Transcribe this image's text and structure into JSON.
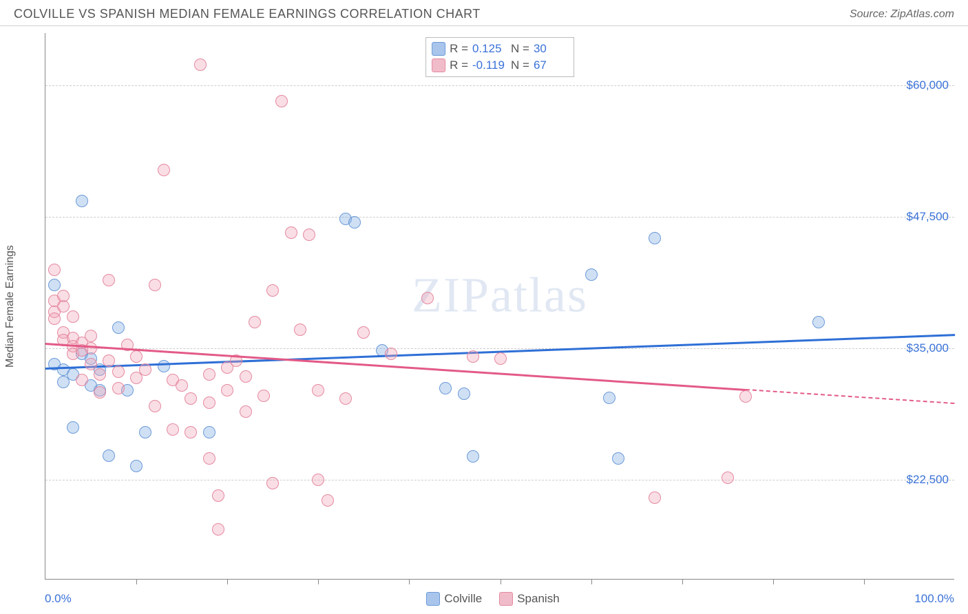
{
  "title": "COLVILLE VS SPANISH MEDIAN FEMALE EARNINGS CORRELATION CHART",
  "source": "Source: ZipAtlas.com",
  "watermark": "ZIPatlas",
  "y_axis_label": "Median Female Earnings",
  "chart": {
    "type": "scatter",
    "xlim": [
      0,
      100
    ],
    "ylim": [
      13000,
      65000
    ],
    "x_min_label": "0.0%",
    "x_max_label": "100.0%",
    "x_ticks_pct": [
      10,
      20,
      30,
      40,
      50,
      60,
      70,
      80,
      90
    ],
    "y_gridlines": [
      22500,
      35000,
      47500,
      60000
    ],
    "y_labels": [
      "$22,500",
      "$35,000",
      "$47,500",
      "$60,000"
    ],
    "grid_color": "#cccccc",
    "axis_color": "#888888",
    "background_color": "#ffffff",
    "point_radius": 9,
    "point_border_width": 1.5,
    "series": [
      {
        "name": "Colville",
        "fill": "rgba(119,165,224,0.35)",
        "stroke": "#6a9ad8",
        "swatch_fill": "#a9c5ec",
        "swatch_border": "#6a9ad8",
        "R": "0.125",
        "N": "30",
        "trend": {
          "y_at_xmin": 33200,
          "y_at_xmax": 36400,
          "color": "#2e6fd6",
          "solid_to_x": 100
        },
        "points": [
          {
            "x": 1,
            "y": 41000
          },
          {
            "x": 1,
            "y": 33500
          },
          {
            "x": 2,
            "y": 33000
          },
          {
            "x": 2,
            "y": 31800
          },
          {
            "x": 3,
            "y": 32500
          },
          {
            "x": 3,
            "y": 27500
          },
          {
            "x": 4,
            "y": 49000
          },
          {
            "x": 4,
            "y": 34500
          },
          {
            "x": 5,
            "y": 34000
          },
          {
            "x": 5,
            "y": 31500
          },
          {
            "x": 6,
            "y": 33000
          },
          {
            "x": 6,
            "y": 31000
          },
          {
            "x": 7,
            "y": 24800
          },
          {
            "x": 8,
            "y": 37000
          },
          {
            "x": 9,
            "y": 31000
          },
          {
            "x": 10,
            "y": 23800
          },
          {
            "x": 11,
            "y": 27000
          },
          {
            "x": 13,
            "y": 33300
          },
          {
            "x": 18,
            "y": 27000
          },
          {
            "x": 33,
            "y": 47300
          },
          {
            "x": 34,
            "y": 47000
          },
          {
            "x": 37,
            "y": 34800
          },
          {
            "x": 44,
            "y": 31200
          },
          {
            "x": 46,
            "y": 30700
          },
          {
            "x": 47,
            "y": 24700
          },
          {
            "x": 60,
            "y": 42000
          },
          {
            "x": 62,
            "y": 30300
          },
          {
            "x": 63,
            "y": 24500
          },
          {
            "x": 67,
            "y": 45500
          },
          {
            "x": 85,
            "y": 37500
          }
        ]
      },
      {
        "name": "Spanish",
        "fill": "rgba(240,160,180,0.35)",
        "stroke": "#e489a0",
        "swatch_fill": "#f1bcc9",
        "swatch_border": "#e489a0",
        "R": "-0.119",
        "N": "67",
        "trend": {
          "y_at_xmin": 35500,
          "y_at_xmax": 29800,
          "color": "#e35a87",
          "solid_to_x": 77
        },
        "points": [
          {
            "x": 1,
            "y": 42500
          },
          {
            "x": 1,
            "y": 39500
          },
          {
            "x": 1,
            "y": 38500
          },
          {
            "x": 1,
            "y": 37800
          },
          {
            "x": 2,
            "y": 40000
          },
          {
            "x": 2,
            "y": 39000
          },
          {
            "x": 2,
            "y": 36500
          },
          {
            "x": 2,
            "y": 35800
          },
          {
            "x": 3,
            "y": 38000
          },
          {
            "x": 3,
            "y": 36000
          },
          {
            "x": 3,
            "y": 35200
          },
          {
            "x": 3,
            "y": 34500
          },
          {
            "x": 4,
            "y": 35500
          },
          {
            "x": 4,
            "y": 34800
          },
          {
            "x": 4,
            "y": 32000
          },
          {
            "x": 5,
            "y": 36200
          },
          {
            "x": 5,
            "y": 35000
          },
          {
            "x": 5,
            "y": 33500
          },
          {
            "x": 6,
            "y": 32500
          },
          {
            "x": 6,
            "y": 30800
          },
          {
            "x": 7,
            "y": 41500
          },
          {
            "x": 7,
            "y": 33800
          },
          {
            "x": 8,
            "y": 32800
          },
          {
            "x": 8,
            "y": 31200
          },
          {
            "x": 9,
            "y": 35300
          },
          {
            "x": 10,
            "y": 34200
          },
          {
            "x": 10,
            "y": 32200
          },
          {
            "x": 11,
            "y": 33000
          },
          {
            "x": 12,
            "y": 41000
          },
          {
            "x": 12,
            "y": 29500
          },
          {
            "x": 13,
            "y": 52000
          },
          {
            "x": 14,
            "y": 32000
          },
          {
            "x": 14,
            "y": 27300
          },
          {
            "x": 15,
            "y": 31500
          },
          {
            "x": 16,
            "y": 30200
          },
          {
            "x": 16,
            "y": 27000
          },
          {
            "x": 17,
            "y": 62000
          },
          {
            "x": 18,
            "y": 32500
          },
          {
            "x": 18,
            "y": 29800
          },
          {
            "x": 18,
            "y": 24500
          },
          {
            "x": 19,
            "y": 21000
          },
          {
            "x": 19,
            "y": 17800
          },
          {
            "x": 20,
            "y": 33200
          },
          {
            "x": 20,
            "y": 31000
          },
          {
            "x": 21,
            "y": 33800
          },
          {
            "x": 22,
            "y": 32300
          },
          {
            "x": 22,
            "y": 29000
          },
          {
            "x": 23,
            "y": 37500
          },
          {
            "x": 24,
            "y": 30500
          },
          {
            "x": 25,
            "y": 40500
          },
          {
            "x": 25,
            "y": 22200
          },
          {
            "x": 26,
            "y": 58500
          },
          {
            "x": 27,
            "y": 46000
          },
          {
            "x": 28,
            "y": 36800
          },
          {
            "x": 29,
            "y": 45800
          },
          {
            "x": 30,
            "y": 31000
          },
          {
            "x": 30,
            "y": 22500
          },
          {
            "x": 31,
            "y": 20500
          },
          {
            "x": 33,
            "y": 30200
          },
          {
            "x": 35,
            "y": 36500
          },
          {
            "x": 38,
            "y": 34500
          },
          {
            "x": 42,
            "y": 39800
          },
          {
            "x": 47,
            "y": 34200
          },
          {
            "x": 50,
            "y": 34000
          },
          {
            "x": 67,
            "y": 20800
          },
          {
            "x": 75,
            "y": 22700
          },
          {
            "x": 77,
            "y": 30400
          }
        ]
      }
    ]
  },
  "stats_box": {
    "R_label": "R =",
    "N_label": "N ="
  },
  "legend_series": [
    "Colville",
    "Spanish"
  ]
}
